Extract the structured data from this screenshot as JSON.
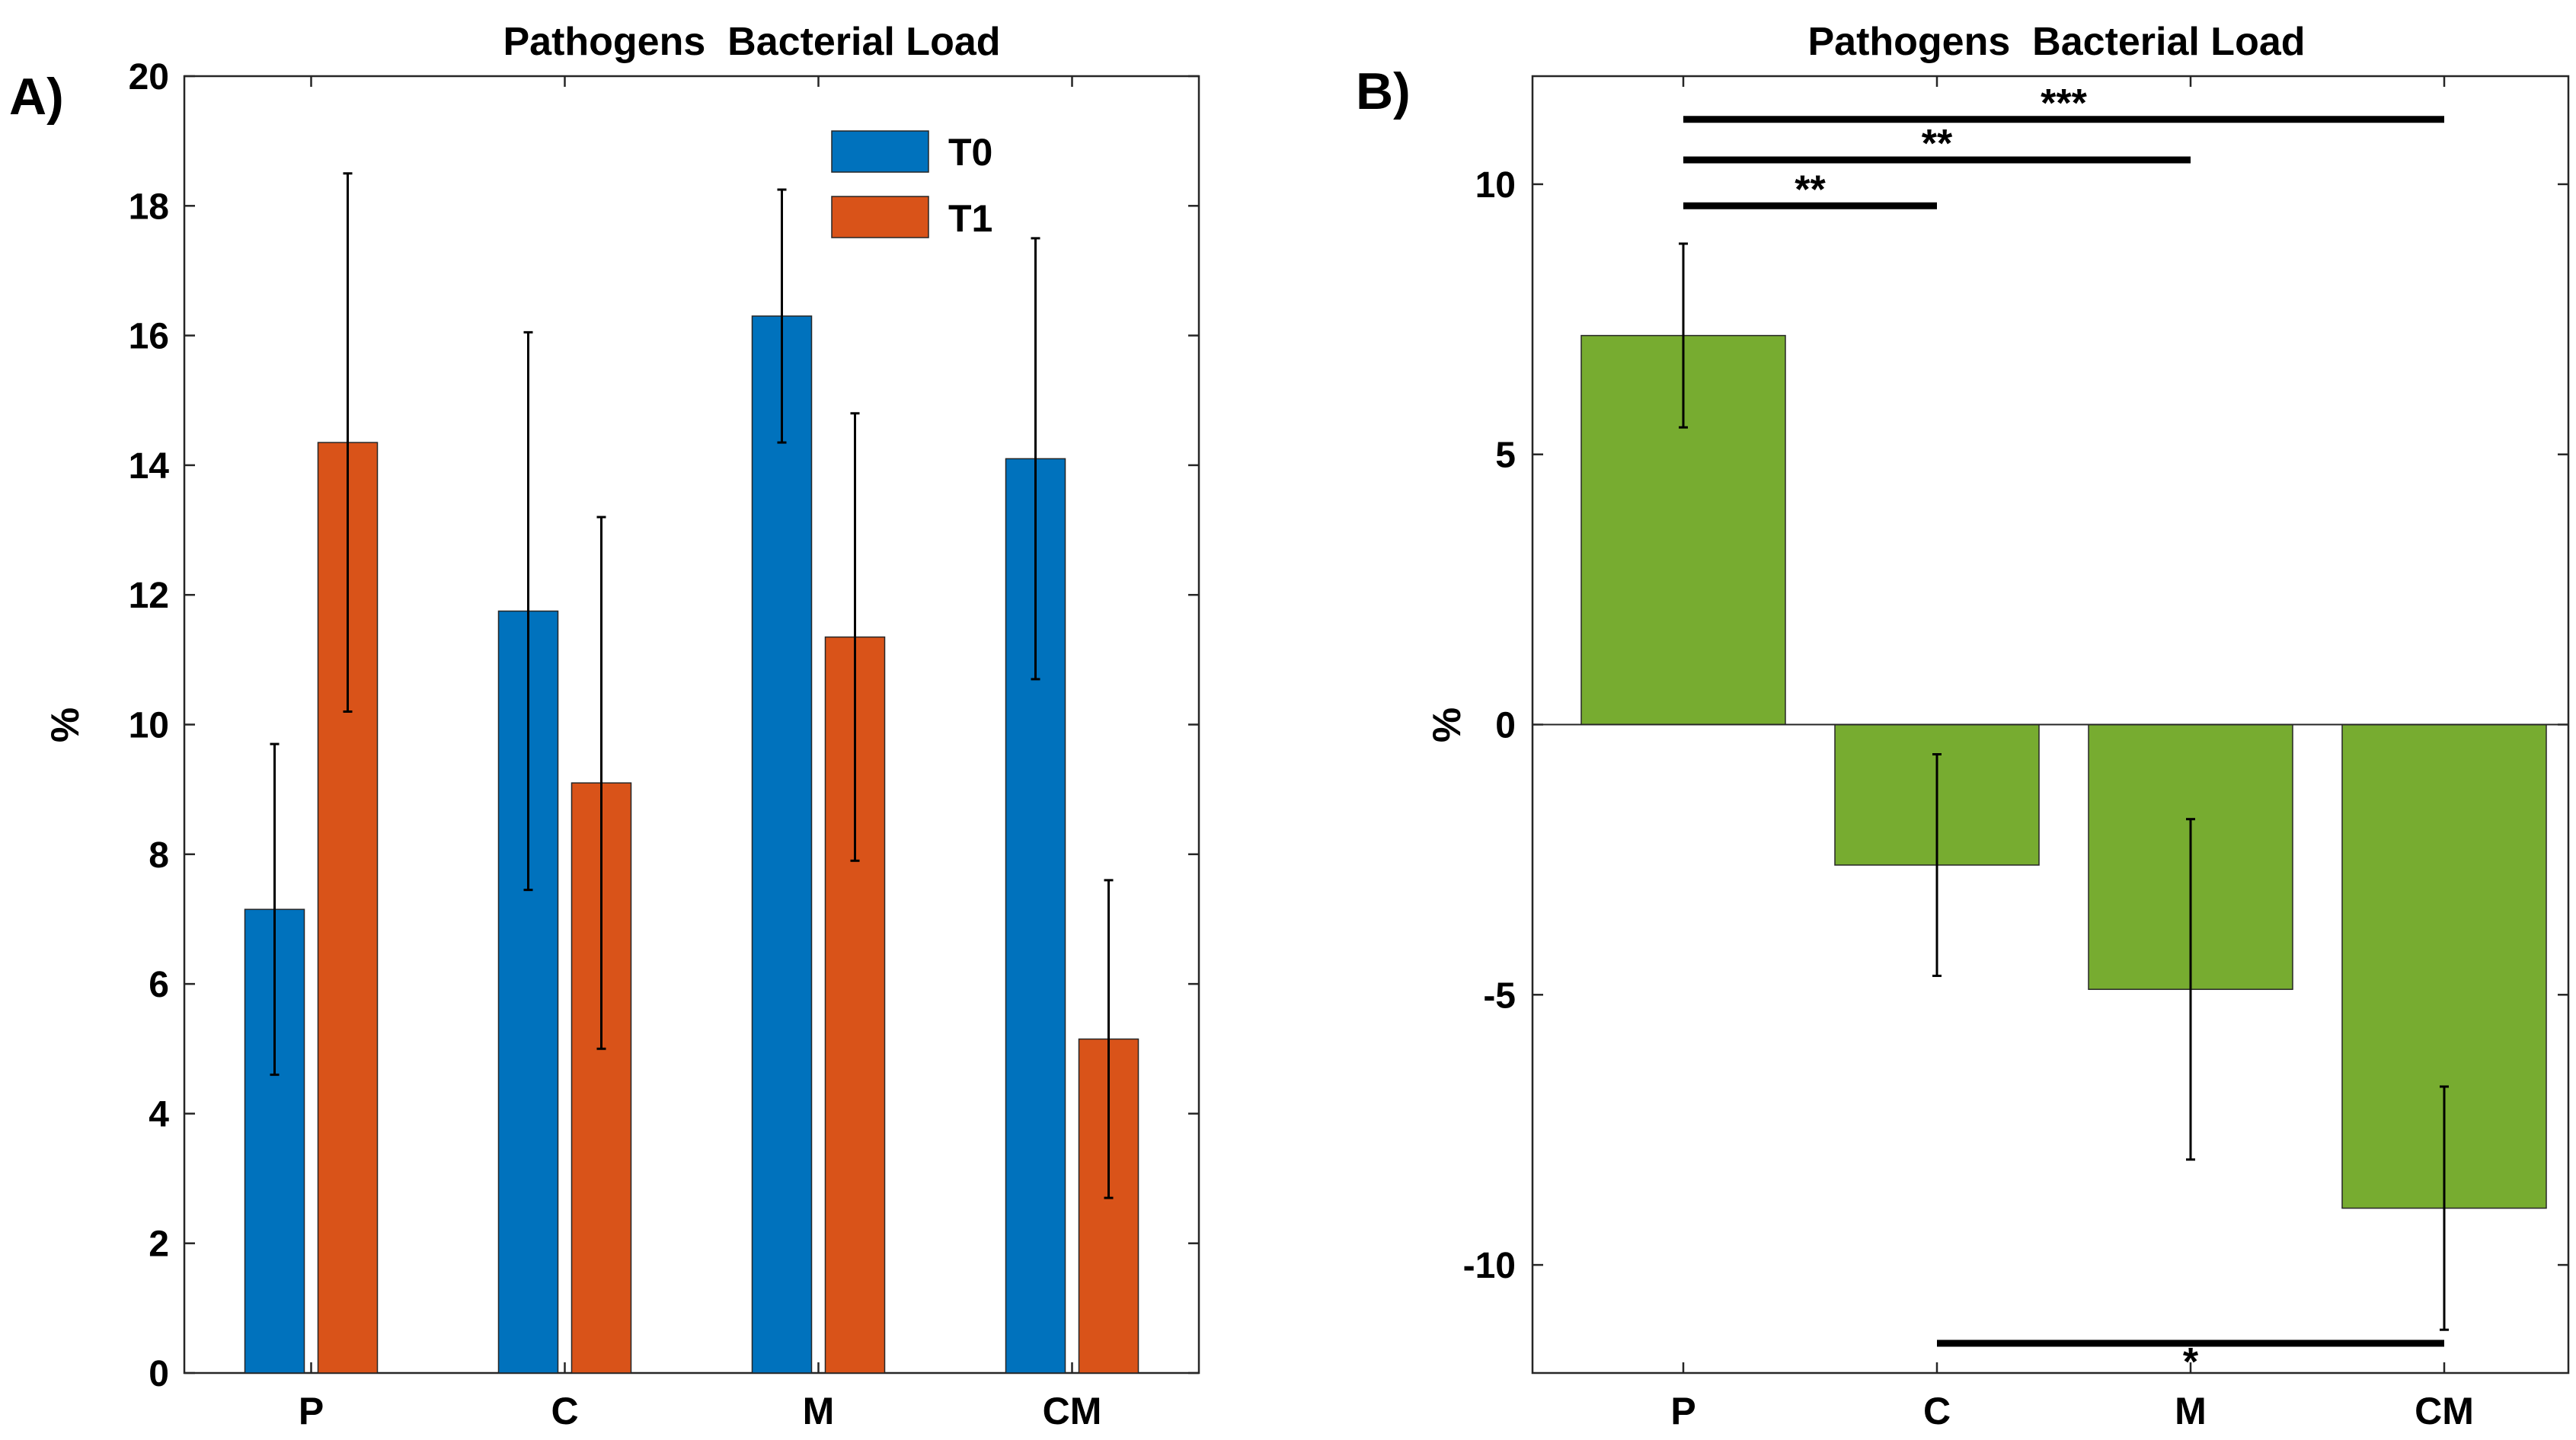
{
  "chart_data": [
    {
      "panel_label": "A)",
      "type": "bar",
      "title": "Pathogens  Bacterial Load",
      "xlabel": "",
      "ylabel": "%",
      "categories": [
        "P",
        "C",
        "M",
        "CM"
      ],
      "ylim": [
        0,
        20
      ],
      "yticks": [
        0,
        2,
        4,
        6,
        8,
        10,
        12,
        14,
        16,
        18,
        20
      ],
      "series": [
        {
          "name": "T0",
          "color": "#0072BD",
          "values": [
            7.15,
            11.75,
            16.3,
            14.1
          ],
          "errors": [
            2.55,
            4.3,
            1.95,
            3.4
          ]
        },
        {
          "name": "T1",
          "color": "#D95319",
          "values": [
            14.35,
            9.1,
            11.35,
            5.15
          ],
          "errors": [
            4.15,
            4.1,
            3.45,
            2.45
          ]
        }
      ],
      "legend": {
        "position": "top-right",
        "entries": [
          "T0",
          "T1"
        ]
      },
      "grid": false
    },
    {
      "panel_label": "B)",
      "type": "bar",
      "title": "Pathogens  Bacterial Load",
      "xlabel": "",
      "ylabel": "%",
      "categories": [
        "P",
        "C",
        "M",
        "CM"
      ],
      "ylim": [
        -12,
        12
      ],
      "yticks": [
        -10,
        -5,
        0,
        5,
        10
      ],
      "ytick_labels": [
        "-10",
        "-5",
        "0",
        "5",
        "10"
      ],
      "series": [
        {
          "color": "#77AC30",
          "values": [
            7.2,
            -2.6,
            -4.9,
            -8.95
          ],
          "errors": [
            1.7,
            2.05,
            3.15,
            2.25
          ]
        }
      ],
      "significance": [
        {
          "from": "P",
          "to": "C",
          "y": 9.6,
          "label": "**"
        },
        {
          "from": "P",
          "to": "M",
          "y": 10.45,
          "label": "**"
        },
        {
          "from": "P",
          "to": "CM",
          "y": 11.2,
          "label": "***"
        },
        {
          "from": "C",
          "to": "CM",
          "y": -11.45,
          "label": "*"
        }
      ],
      "grid": false
    }
  ]
}
